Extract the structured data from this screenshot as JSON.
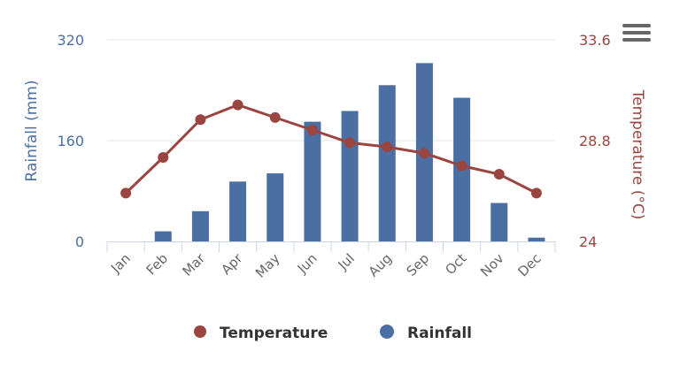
{
  "chart_data": {
    "type": "bar+line",
    "categories": [
      "Jan",
      "Feb",
      "Mar",
      "Apr",
      "May",
      "Jun",
      "Jul",
      "Aug",
      "Sep",
      "Oct",
      "Nov",
      "Dec"
    ],
    "series": [
      {
        "name": "Temperature",
        "type": "line",
        "axis": "right",
        "color": "#9a4540",
        "values": [
          26.3,
          28.0,
          29.8,
          30.5,
          29.9,
          29.3,
          28.7,
          28.5,
          28.2,
          27.6,
          27.2,
          26.3
        ]
      },
      {
        "name": "Rainfall",
        "type": "bar",
        "axis": "left",
        "color": "#4c6fa3",
        "values": [
          0,
          16,
          48,
          95,
          108,
          190,
          207,
          248,
          283,
          228,
          61,
          6
        ]
      }
    ],
    "y_left": {
      "label": "Rainfall (mm)",
      "range": [
        0,
        320
      ],
      "ticks": [
        "0",
        "160",
        "320"
      ],
      "color": "#4c6fa3"
    },
    "y_right": {
      "label": "Temperature (°C)",
      "range": [
        24,
        33.6
      ],
      "ticks": [
        "24",
        "28.8",
        "33.6"
      ],
      "color": "#9a4540"
    },
    "grid": true,
    "legend": "bottom-center"
  },
  "menu": {
    "icon": "hamburger-menu-icon"
  }
}
